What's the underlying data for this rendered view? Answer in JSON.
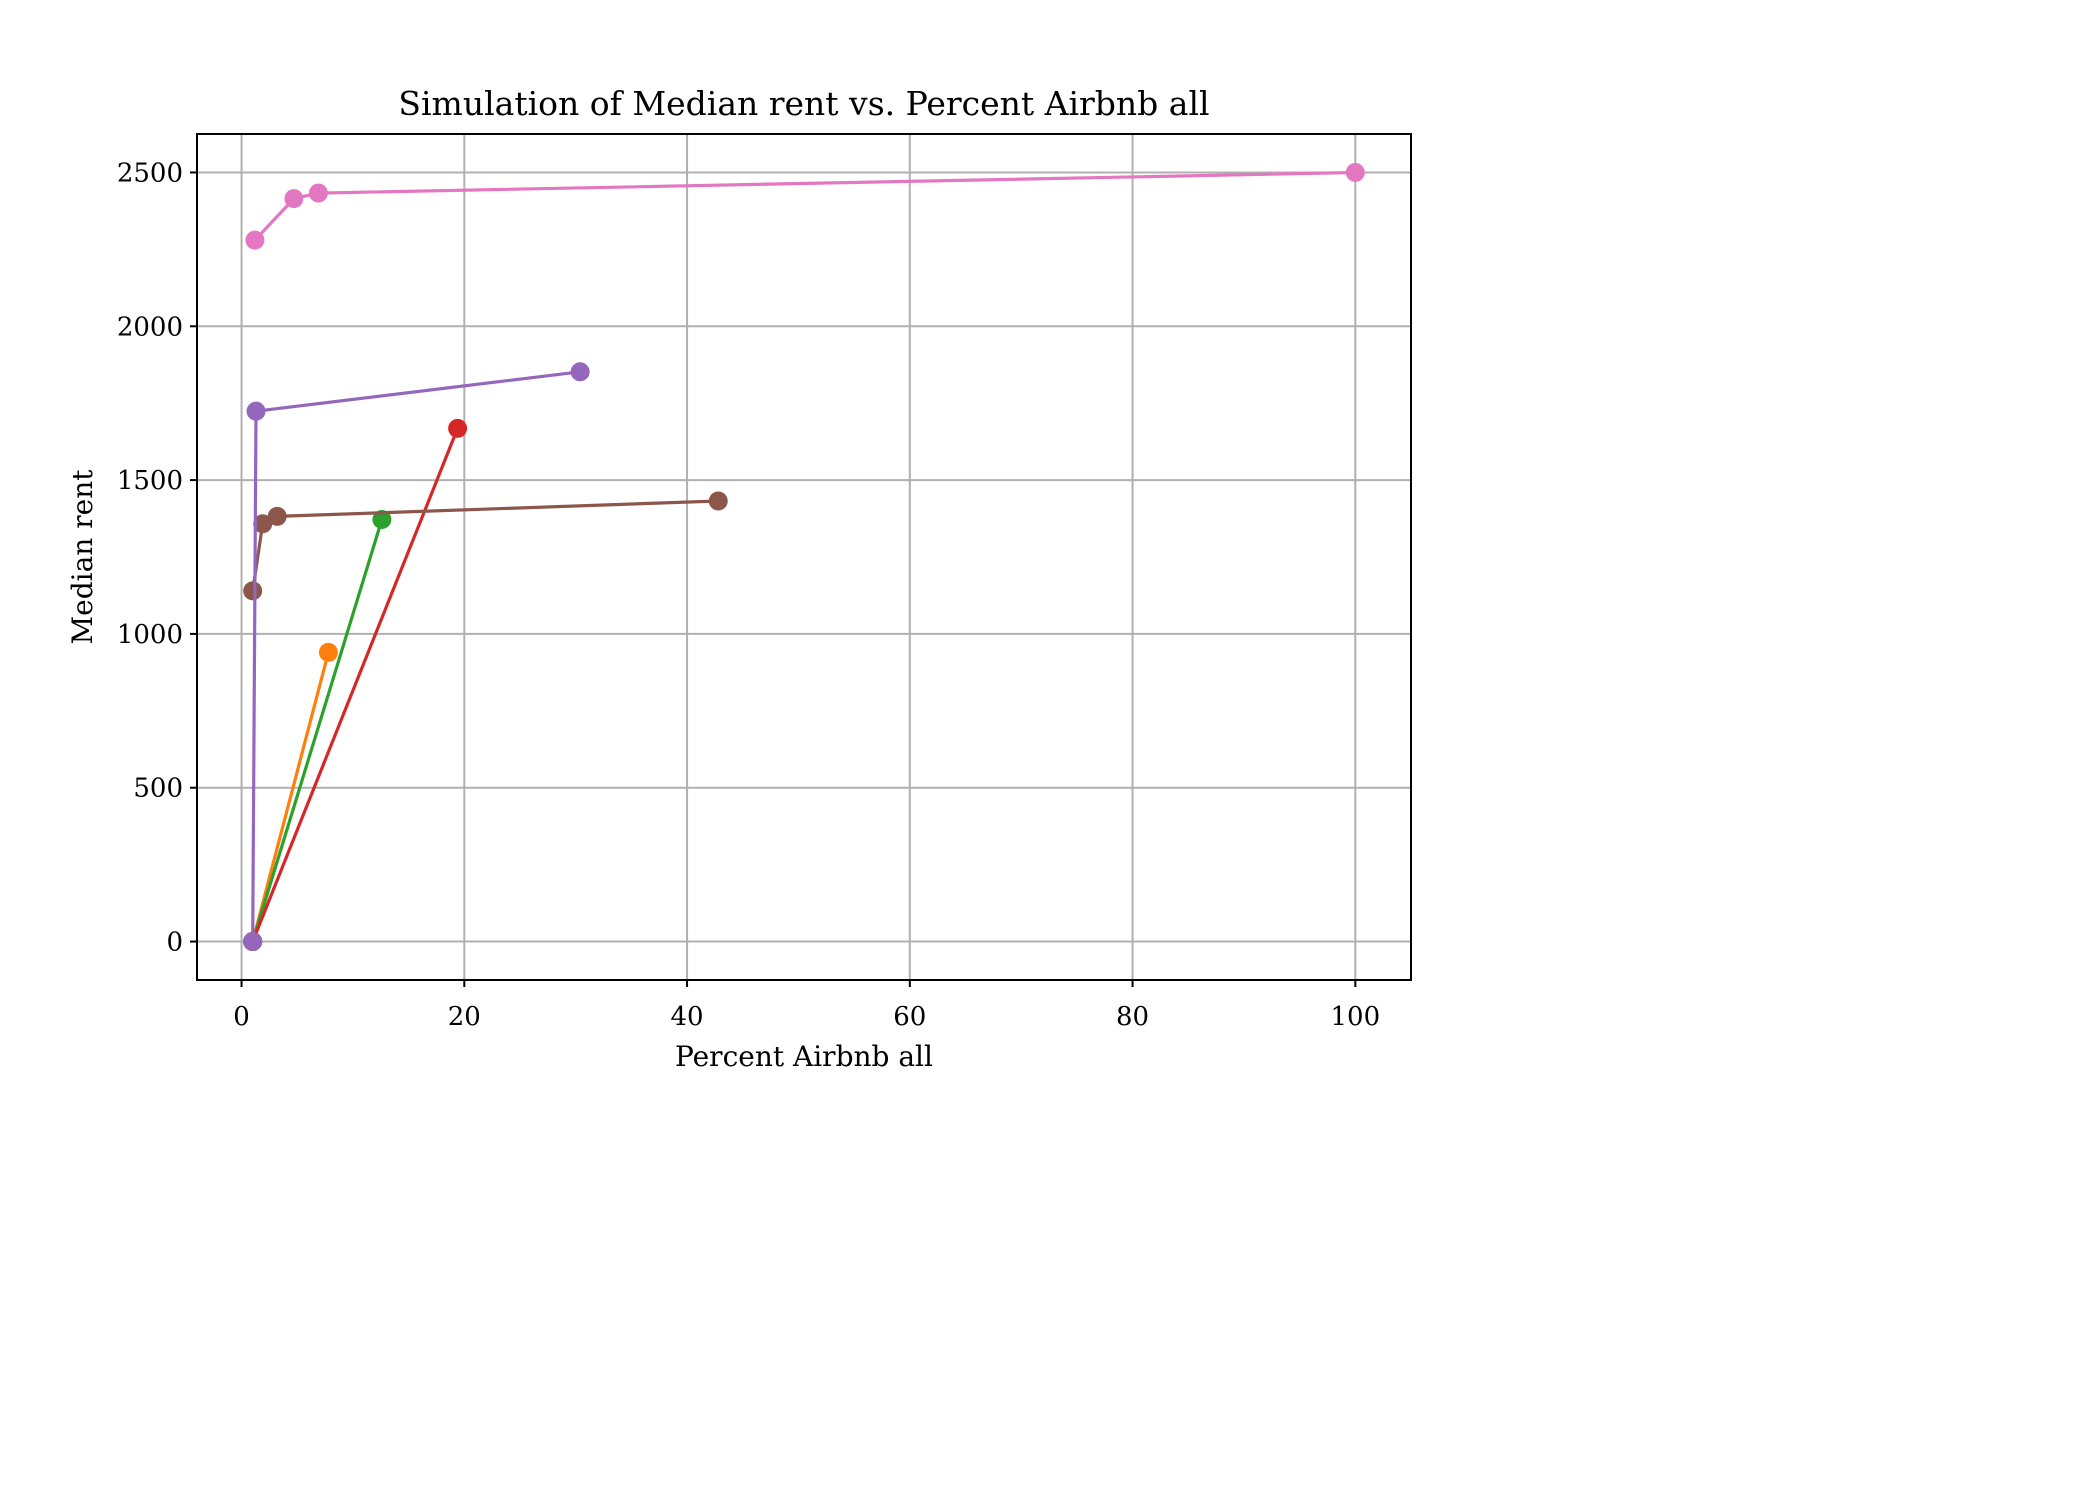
{
  "chart_data": {
    "type": "line",
    "title": "Simulation of Median rent vs. Percent Airbnb all",
    "xlabel": "Percent Airbnb all",
    "ylabel": "Median rent",
    "xlim": [
      -4,
      105
    ],
    "ylim": [
      -125,
      2625
    ],
    "xticks": [
      0,
      20,
      40,
      60,
      80,
      100
    ],
    "yticks": [
      0,
      500,
      1000,
      1500,
      2000,
      2500
    ],
    "grid": true,
    "markers": true,
    "series": [
      {
        "color": "#1f77b4",
        "points": [
          [
            1.0,
            0
          ]
        ]
      },
      {
        "color": "#ff7f0e",
        "points": [
          [
            1.0,
            0
          ],
          [
            7.8,
            940
          ]
        ]
      },
      {
        "color": "#2ca02c",
        "points": [
          [
            1.0,
            0
          ],
          [
            12.6,
            1372
          ]
        ]
      },
      {
        "color": "#d62728",
        "points": [
          [
            1.0,
            0
          ],
          [
            19.4,
            1668
          ]
        ]
      },
      {
        "color": "#8c564b",
        "points": [
          [
            1.0,
            1140
          ],
          [
            1.9,
            1358
          ],
          [
            3.2,
            1382
          ],
          [
            42.8,
            1432
          ]
        ]
      },
      {
        "color": "#e377c2",
        "points": [
          [
            1.2,
            2280
          ],
          [
            4.7,
            2415
          ],
          [
            6.9,
            2433
          ],
          [
            100.0,
            2500
          ]
        ]
      },
      {
        "color": "#9467bd",
        "points": [
          [
            1.0,
            0
          ],
          [
            1.3,
            1724
          ],
          [
            30.4,
            1852
          ]
        ]
      }
    ]
  }
}
